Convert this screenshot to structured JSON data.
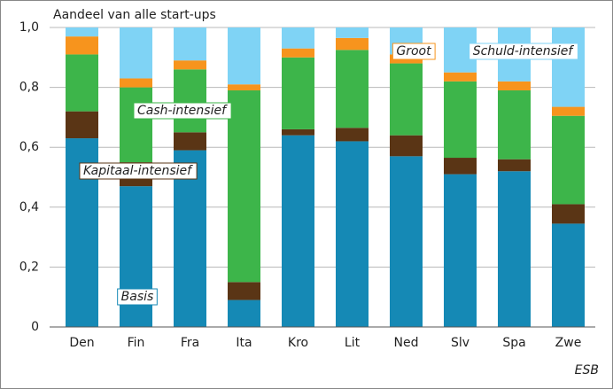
{
  "chart_data": {
    "type": "stacked_bar",
    "title": "Aandeel van alle start-ups",
    "source": "ESB",
    "categories": [
      "Den",
      "Fin",
      "Fra",
      "Ita",
      "Kro",
      "Lit",
      "Ned",
      "Slv",
      "Spa",
      "Zwe"
    ],
    "series": [
      {
        "name": "Basis",
        "color": "#1589b5",
        "values": [
          0.63,
          0.47,
          0.59,
          0.09,
          0.64,
          0.62,
          0.57,
          0.51,
          0.52,
          0.345
        ]
      },
      {
        "name": "Kapitaal-intensief",
        "color": "#5a3515",
        "values": [
          0.09,
          0.08,
          0.06,
          0.06,
          0.02,
          0.045,
          0.07,
          0.055,
          0.04,
          0.065
        ]
      },
      {
        "name": "Cash-intensief",
        "color": "#3db54a",
        "values": [
          0.19,
          0.25,
          0.21,
          0.64,
          0.24,
          0.26,
          0.24,
          0.255,
          0.23,
          0.295
        ]
      },
      {
        "name": "Groot",
        "color": "#f7941d",
        "values": [
          0.06,
          0.03,
          0.03,
          0.02,
          0.03,
          0.04,
          0.03,
          0.03,
          0.03,
          0.03
        ]
      },
      {
        "name": "Schuld-intensief",
        "color": "#7fd3f5",
        "values": [
          0.03,
          0.17,
          0.11,
          0.19,
          0.07,
          0.035,
          0.09,
          0.15,
          0.18,
          0.265
        ]
      }
    ],
    "ylim": [
      0,
      1
    ],
    "yticks": [
      0,
      {
        "value": 0.2,
        "label": "0,2"
      },
      {
        "value": 0.4,
        "label": "0,4"
      },
      {
        "value": 0.6,
        "label": "0,6"
      },
      {
        "value": 0.8,
        "label": "0,8"
      },
      {
        "value": 1,
        "label": "1,0"
      }
    ],
    "grid": true
  }
}
